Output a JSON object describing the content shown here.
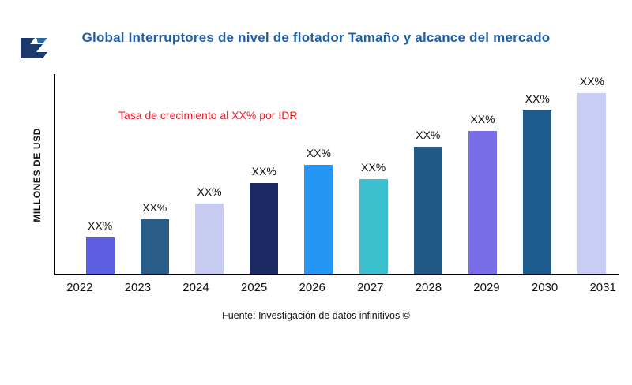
{
  "title": "Global Interruptores de nivel de flotador Tamaño y alcance del mercado",
  "annotation": "Tasa de crecimiento al XX% por IDR",
  "source": "Fuente: Investigación de datos infinitivos ©",
  "ylabel": "MILLONES DE USD",
  "colors": {
    "title": "#1f5fa8",
    "annotation": "#e8202a",
    "axis": "#000000",
    "logo": "#1b3a6b"
  },
  "chart_data": {
    "type": "bar",
    "title": "Global Interruptores de nivel de flotador Tamaño y alcance del mercado",
    "xlabel": "",
    "ylabel": "MILLONES DE USD",
    "categories": [
      "2022",
      "2023",
      "2024",
      "2025",
      "2026",
      "2027",
      "2028",
      "2029",
      "2030",
      "2031"
    ],
    "values": [
      18,
      27,
      35,
      45,
      54,
      47,
      63,
      71,
      81,
      90
    ],
    "value_labels": [
      "XX%",
      "XX%",
      "XX%",
      "XX%",
      "XX%",
      "XX%",
      "XX%",
      "XX%",
      "XX%",
      "XX%"
    ],
    "bar_colors": [
      "#5c5fe0",
      "#2a5c88",
      "#c7cbf0",
      "#1c2a63",
      "#2596f3",
      "#3cc0ce",
      "#235a85",
      "#7a6ee8",
      "#1f5c8e",
      "#c9cdf4"
    ],
    "ylim": [
      0,
      100
    ],
    "grid": false,
    "legend": false,
    "annotations": [
      "Tasa de crecimiento al XX% por IDR"
    ]
  }
}
